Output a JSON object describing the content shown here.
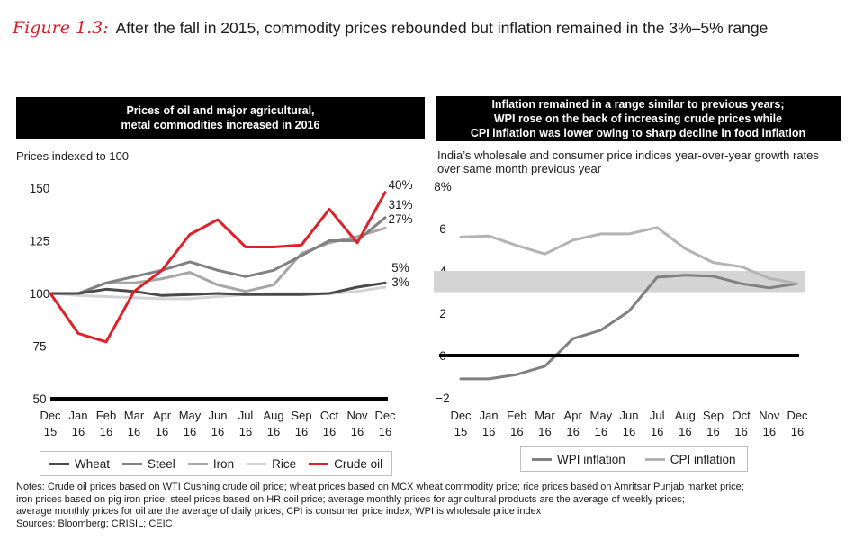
{
  "figure": {
    "label": "Figure 1.3:",
    "title": "After the fall in 2015, commodity prices rebounded but inflation remained in the 3%–5% range"
  },
  "chart_data": [
    {
      "type": "line",
      "header": [
        "Prices of oil and major agricultural,",
        "metal commodities increased in 2016"
      ],
      "ylabel": "Prices indexed to 100",
      "ylim": [
        50,
        150
      ],
      "yticks": [
        "150",
        "125",
        "100",
        "75",
        "50"
      ],
      "categories": [
        [
          "Dec",
          "15"
        ],
        [
          "Jan",
          "16"
        ],
        [
          "Feb",
          "16"
        ],
        [
          "Mar",
          "16"
        ],
        [
          "Apr",
          "16"
        ],
        [
          "May",
          "16"
        ],
        [
          "Jun",
          "16"
        ],
        [
          "Jul",
          "16"
        ],
        [
          "Aug",
          "16"
        ],
        [
          "Sep",
          "16"
        ],
        [
          "Oct",
          "16"
        ],
        [
          "Nov",
          "16"
        ],
        [
          "Dec",
          "16"
        ]
      ],
      "series": [
        {
          "name": "Wheat",
          "color": "#4a4a4a",
          "values": [
            100,
            100,
            102,
            101,
            99,
            99.5,
            100,
            99.5,
            99.5,
            99.5,
            100,
            103,
            105
          ]
        },
        {
          "name": "Steel",
          "color": "#808080",
          "values": [
            100,
            100,
            105,
            108,
            111,
            115,
            111,
            108,
            111,
            118,
            125,
            125,
            136
          ]
        },
        {
          "name": "Iron",
          "color": "#a6a6a6",
          "values": [
            100,
            100,
            105,
            105,
            107,
            110,
            104,
            101,
            104,
            119,
            124,
            127,
            131
          ]
        },
        {
          "name": "Rice",
          "color": "#d3d3d3",
          "values": [
            100,
            99,
            98.5,
            98,
            97.5,
            97.5,
            98.5,
            99.5,
            100,
            100,
            100,
            101,
            103
          ]
        },
        {
          "name": "Crude oil",
          "color": "#e21f26",
          "values": [
            100,
            81,
            77,
            101,
            111,
            128,
            135,
            122,
            122,
            123,
            140,
            124,
            148
          ]
        }
      ],
      "end_labels": [
        "40%",
        "31%",
        "27%",
        "5%",
        "3%"
      ]
    },
    {
      "type": "line",
      "header": [
        "Inflation remained in a range similar to previous years;",
        "WPI rose on the back of increasing crude prices while",
        "CPI inflation was lower owing to sharp decline in food inflation"
      ],
      "ylabel": [
        "India’s wholesale and consumer price indices year-over-year growth rates",
        "over same month previous year"
      ],
      "ylim": [
        -2,
        8
      ],
      "yticks": [
        "8%",
        "6",
        "4",
        "2",
        "0",
        "−2"
      ],
      "band": [
        3,
        4
      ],
      "categories": [
        [
          "Dec",
          "15"
        ],
        [
          "Jan",
          "16"
        ],
        [
          "Feb",
          "16"
        ],
        [
          "Mar",
          "16"
        ],
        [
          "Apr",
          "16"
        ],
        [
          "May",
          "16"
        ],
        [
          "Jun",
          "16"
        ],
        [
          "Jul",
          "16"
        ],
        [
          "Aug",
          "16"
        ],
        [
          "Sep",
          "16"
        ],
        [
          "Oct",
          "16"
        ],
        [
          "Nov",
          "16"
        ],
        [
          "Dec",
          "16"
        ]
      ],
      "series": [
        {
          "name": "WPI inflation",
          "color": "#808080",
          "values": [
            -1.1,
            -1.1,
            -0.9,
            -0.5,
            0.8,
            1.2,
            2.1,
            3.7,
            3.8,
            3.75,
            3.4,
            3.2,
            3.4
          ]
        },
        {
          "name": "CPI inflation",
          "color": "#b3b3b3",
          "values": [
            5.6,
            5.65,
            5.2,
            4.8,
            5.45,
            5.75,
            5.75,
            6.05,
            5.05,
            4.4,
            4.2,
            3.65,
            3.4
          ]
        }
      ]
    }
  ],
  "notes": [
    "Notes: Crude oil prices based on WTI Cushing crude oil price; wheat prices based on MCX wheat commodity price; rice prices based on Amritsar Punjab market price;",
    "iron prices based on pig iron price; steel prices based on HR coil price; average monthly prices for agricultural products are the average of weekly prices;",
    "average monthly prices for oil are the average of daily prices; CPI is consumer price index; WPI is wholesale price index",
    "Sources: Bloomberg; CRISIL; CEIC"
  ]
}
